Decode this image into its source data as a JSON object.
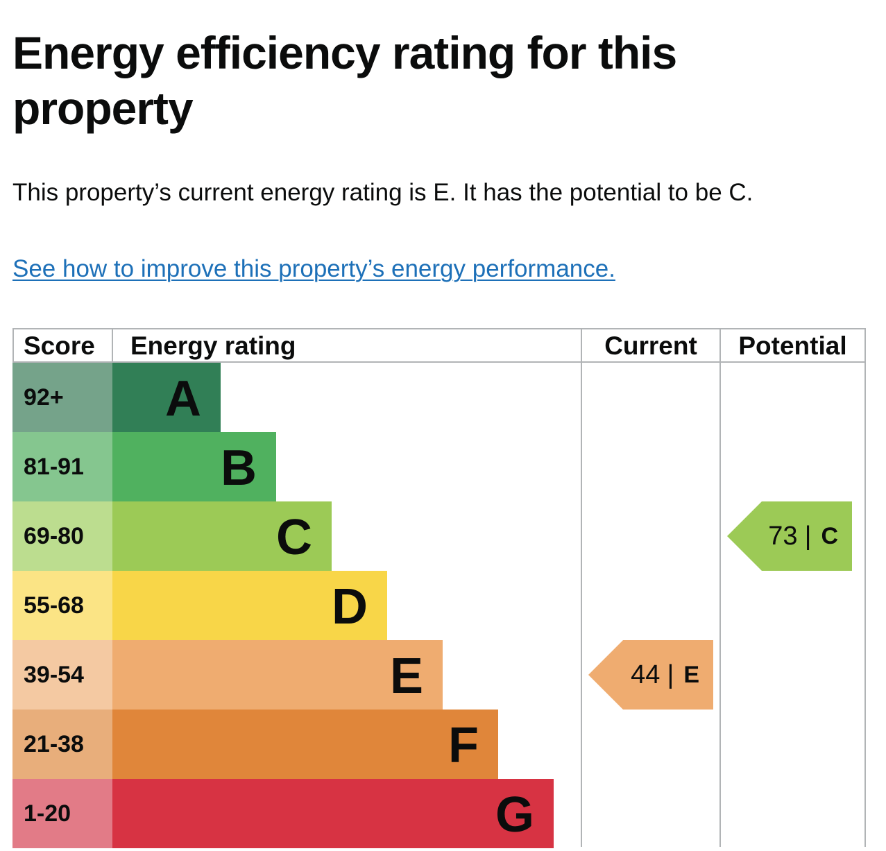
{
  "heading": "Energy efficiency rating for this property",
  "summary": "This property’s current energy rating is E. It has the potential to be C.",
  "improve_link": "See how to improve this property’s energy performance.",
  "table": {
    "headers": {
      "score": "Score",
      "energy_rating": "Energy rating",
      "current": "Current",
      "potential": "Potential"
    },
    "bands": [
      {
        "score": "92+",
        "letter": "A",
        "color": "#317f56",
        "score_bg": "#75a38a"
      },
      {
        "score": "81-91",
        "letter": "B",
        "color": "#50b15f",
        "score_bg": "#85c68f"
      },
      {
        "score": "69-80",
        "letter": "C",
        "color": "#9cca56",
        "score_bg": "#bcdd8f"
      },
      {
        "score": "55-68",
        "letter": "D",
        "color": "#f8d648",
        "score_bg": "#fbe485"
      },
      {
        "score": "39-54",
        "letter": "E",
        "color": "#efac70",
        "score_bg": "#f4c9a2"
      },
      {
        "score": "21-38",
        "letter": "F",
        "color": "#e0863a",
        "score_bg": "#e8ae7b"
      },
      {
        "score": "1-20",
        "letter": "G",
        "color": "#d73343",
        "score_bg": "#e27b87"
      }
    ],
    "current": {
      "score": "44",
      "separator": "|",
      "letter": "E",
      "color": "#efac70"
    },
    "potential": {
      "score": "73",
      "separator": "|",
      "letter": "C",
      "color": "#9cca56"
    }
  }
}
